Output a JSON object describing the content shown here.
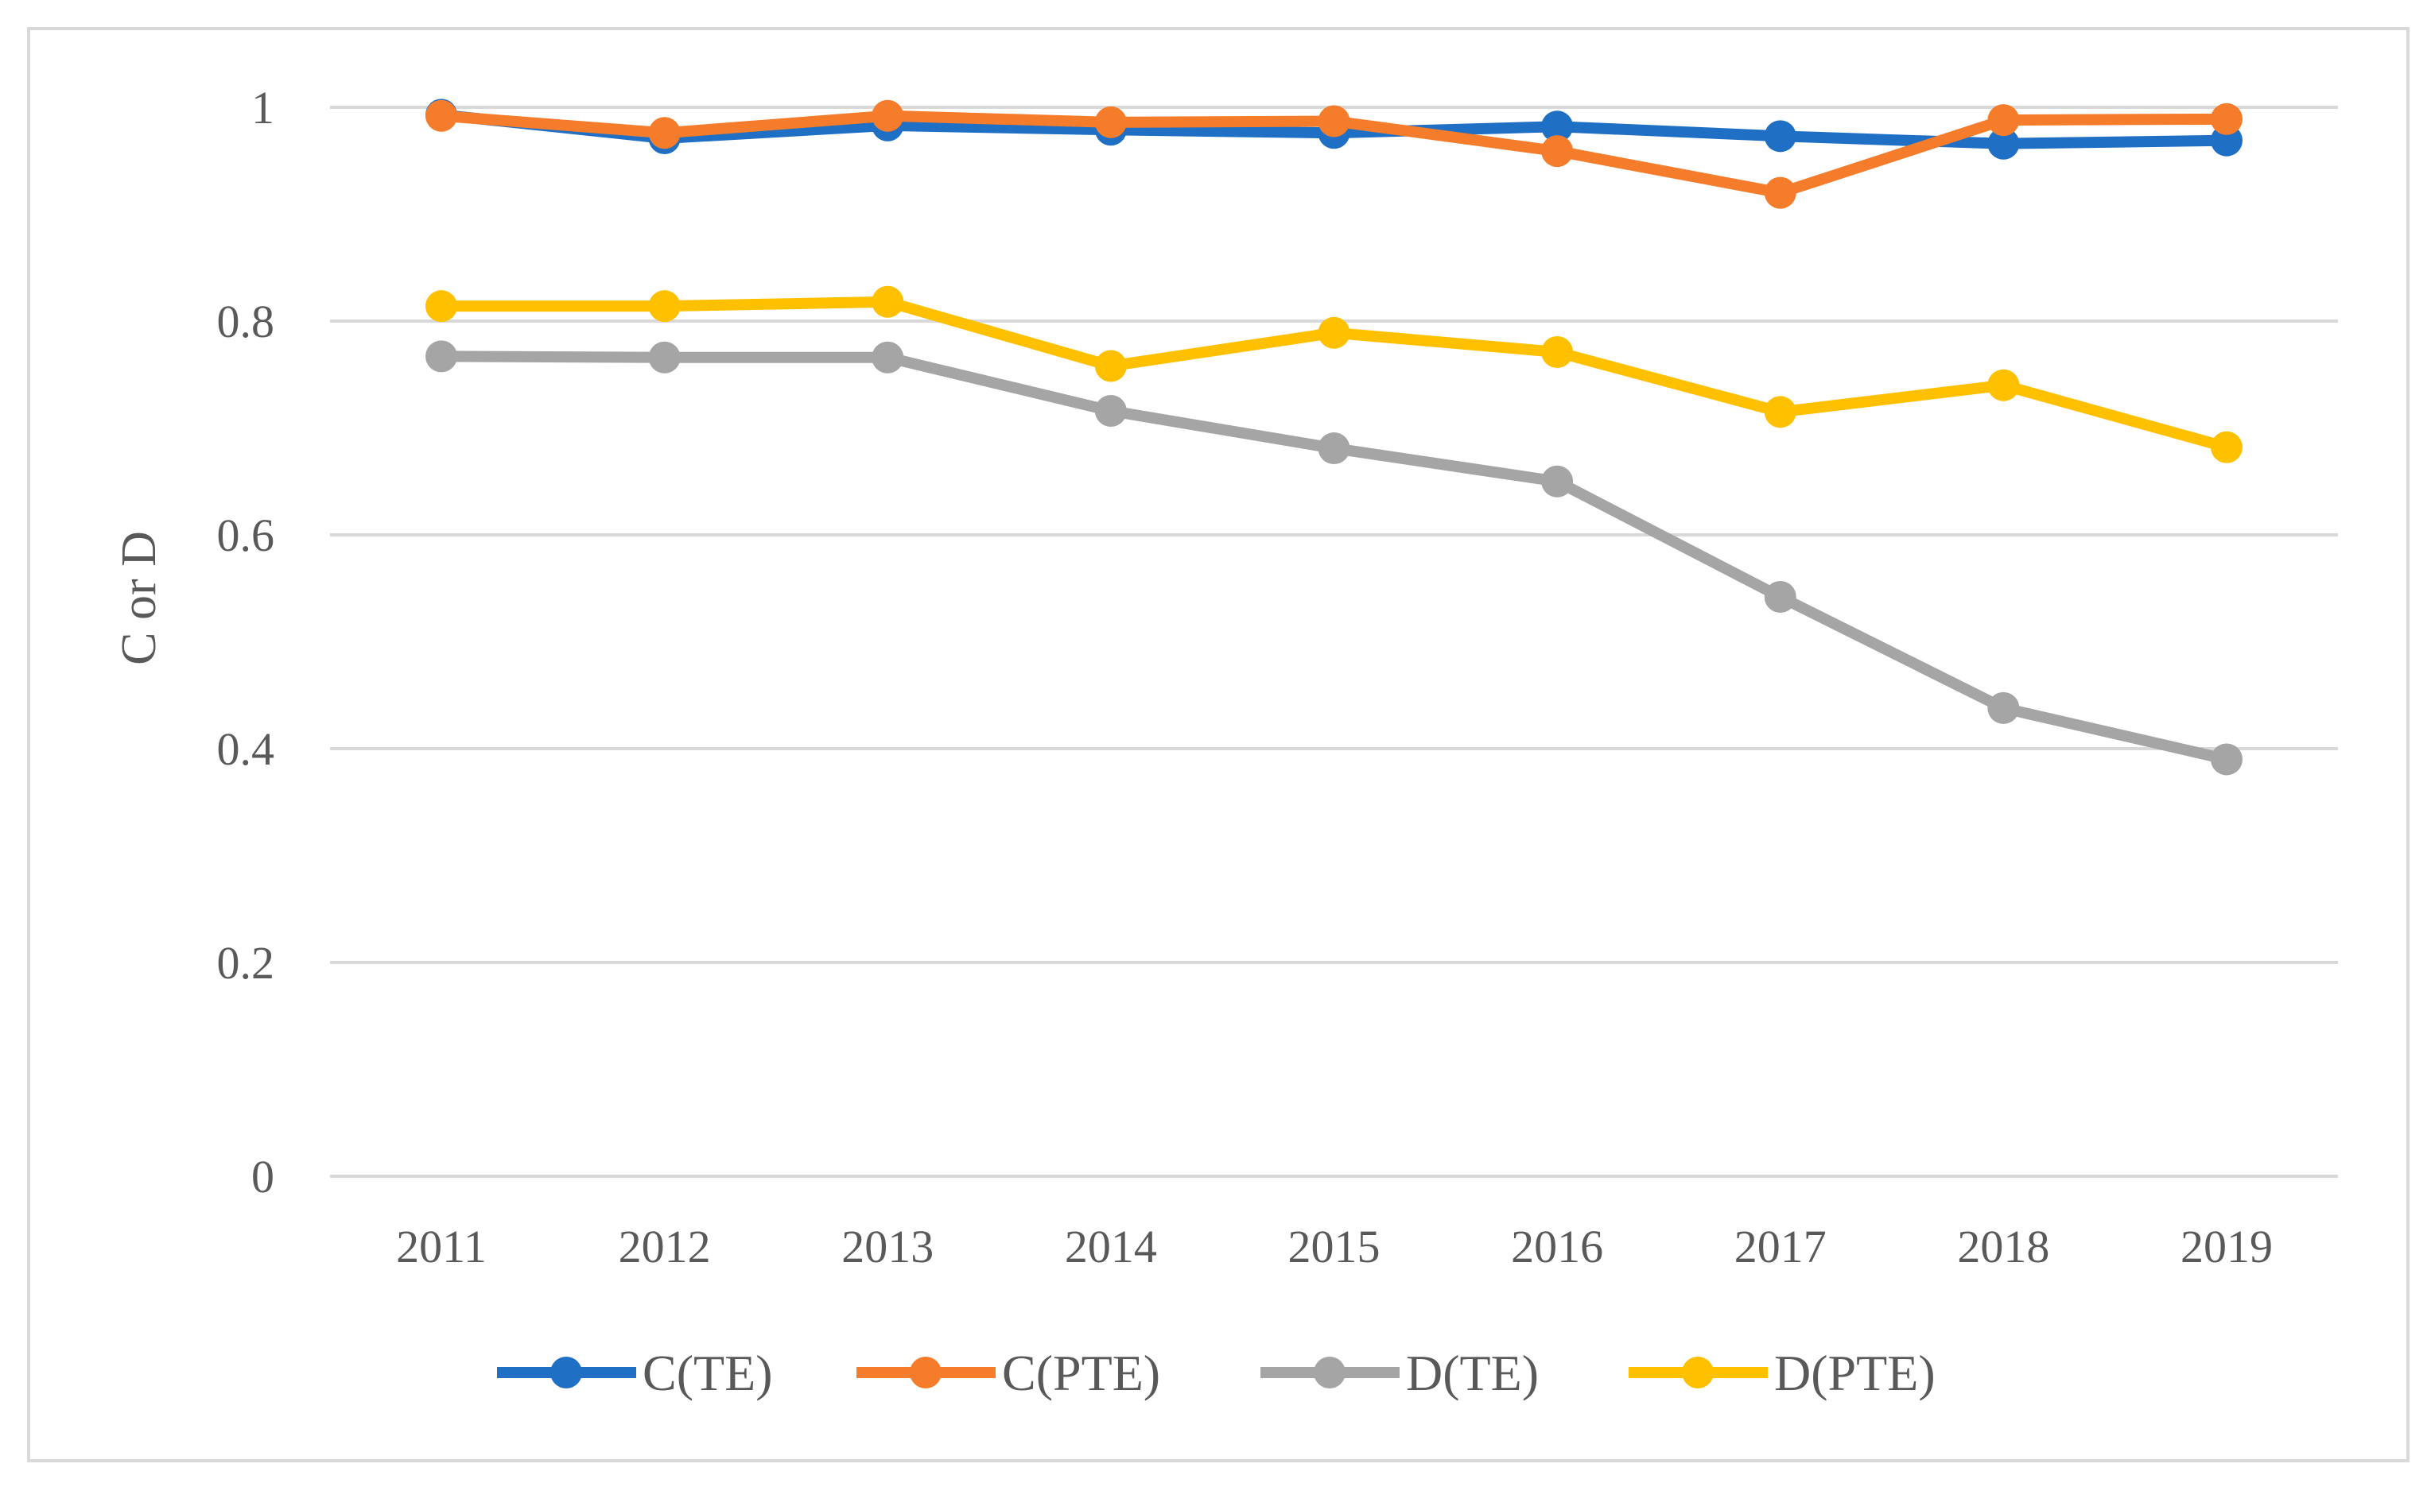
{
  "chart_data": {
    "type": "line",
    "title": "",
    "xlabel": "",
    "ylabel": "C or D",
    "categories": [
      "2011",
      "2012",
      "2013",
      "2014",
      "2015",
      "2016",
      "2017",
      "2018",
      "2019"
    ],
    "ylim": [
      0,
      1
    ],
    "yticks": [
      "0",
      "0.2",
      "0.4",
      "0.6",
      "0.8",
      "1"
    ],
    "grid": "horizontal",
    "legend_position": "bottom",
    "series": [
      {
        "name": "C(TE)",
        "color": "#1f6fc5",
        "values": [
          0.993,
          0.971,
          0.983,
          0.979,
          0.976,
          0.982,
          0.973,
          0.966,
          0.969
        ]
      },
      {
        "name": "C(PTE)",
        "color": "#f47c2a",
        "values": [
          0.992,
          0.976,
          0.992,
          0.986,
          0.987,
          0.959,
          0.92,
          0.988,
          0.989
        ]
      },
      {
        "name": "D(TE)",
        "color": "#a5a5a5",
        "values": [
          0.767,
          0.766,
          0.766,
          0.716,
          0.681,
          0.65,
          0.542,
          0.438,
          0.39
        ]
      },
      {
        "name": "D(PTE)",
        "color": "#ffc000",
        "values": [
          0.814,
          0.814,
          0.818,
          0.758,
          0.789,
          0.771,
          0.715,
          0.74,
          0.682
        ]
      }
    ]
  }
}
